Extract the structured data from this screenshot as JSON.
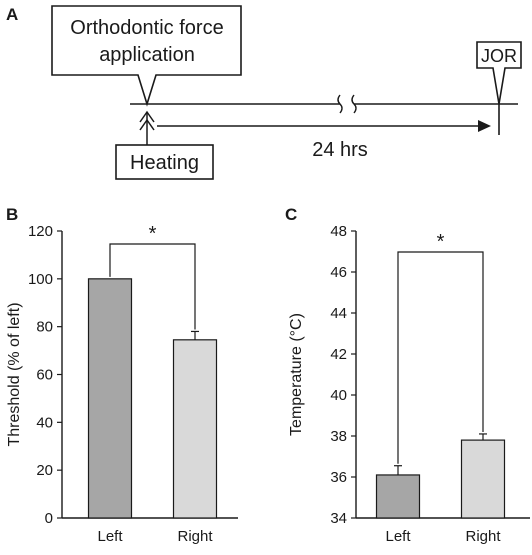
{
  "panel_a": {
    "letter": "A",
    "force_callout": [
      "Orthodontic force",
      "application"
    ],
    "jor_label": "JOR",
    "heating_label": "Heating",
    "duration_label": "24 hrs"
  },
  "chart_data": [
    {
      "panel": "B",
      "type": "bar",
      "categories": [
        "Left",
        "Right"
      ],
      "values": [
        100,
        74.5
      ],
      "errors": [
        0,
        3.5
      ],
      "ylabel": "Threshold (% of left)",
      "ylim": [
        0,
        120
      ],
      "yticks": [
        0,
        20,
        40,
        60,
        80,
        100,
        120
      ],
      "bar_colors": [
        "#a6a6a6",
        "#d9d9d9"
      ],
      "significance": "*",
      "grid": false
    },
    {
      "panel": "C",
      "type": "bar",
      "categories": [
        "Left",
        "Right"
      ],
      "values": [
        36.1,
        37.8
      ],
      "errors": [
        0.45,
        0.3
      ],
      "ylabel": "Temperature (°C)",
      "ylim": [
        34,
        48
      ],
      "yticks": [
        34,
        36,
        38,
        40,
        42,
        44,
        46,
        48
      ],
      "bar_colors": [
        "#a6a6a6",
        "#d9d9d9"
      ],
      "significance": "*",
      "grid": false
    }
  ]
}
